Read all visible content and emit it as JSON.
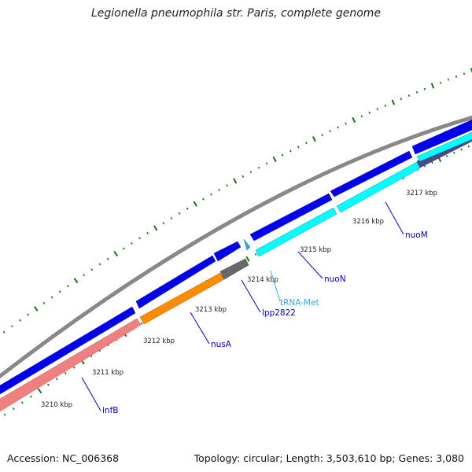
{
  "title": "Legionella pneumophila str. Paris, complete genome",
  "footer": {
    "accession": "Accession: NC_006368",
    "summary": "Topology: circular; Length: 3,503,610 bp; Genes: 3,080"
  },
  "scale_labels": [
    "3210 kbp",
    "3211 kbp",
    "3212 kbp",
    "3213 kbp",
    "3214 kbp",
    "3215 kbp",
    "3216 kbp",
    "3217 kbp"
  ],
  "genes": [
    {
      "name": "infB",
      "color": "#0000aa"
    },
    {
      "name": "nusA",
      "color": "#0000aa"
    },
    {
      "name": "lpp2822",
      "color": "#0000aa"
    },
    {
      "name": "tRNA-Met",
      "color": "#33aadd"
    },
    {
      "name": "nuoN",
      "color": "#0000aa"
    },
    {
      "name": "nuoM",
      "color": "#0000aa"
    }
  ],
  "colors": {
    "cds": "#0000ee",
    "backbone": "#888888",
    "infB": "#f08080",
    "nusA": "#ff8c00",
    "lpp2822": "#696969",
    "trna": "#00e5ee",
    "nuo": "#00ffff",
    "ticks": "#1b6e1b"
  }
}
